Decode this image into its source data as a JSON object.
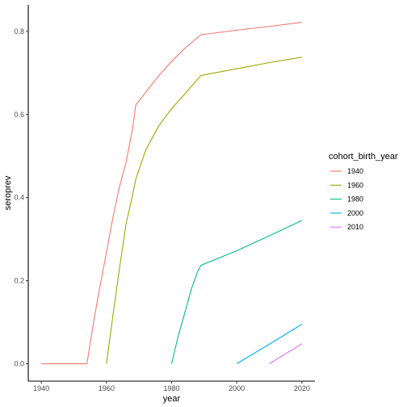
{
  "chart_data": {
    "type": "line",
    "xlabel": "year",
    "ylabel": "seroprev",
    "xlim": [
      1936,
      2024
    ],
    "ylim": [
      -0.042,
      0.864
    ],
    "x_ticks": [
      1940,
      1960,
      1980,
      2000,
      2020
    ],
    "y_ticks": [
      0.0,
      0.2,
      0.4,
      0.6,
      0.8
    ],
    "x_tick_labels": [
      "1940",
      "1960",
      "1980",
      "2000",
      "2020"
    ],
    "y_tick_labels": [
      "0.0",
      "0.2",
      "0.4",
      "0.6",
      "0.8"
    ],
    "grid": false,
    "legend": {
      "title": "cohort_birth_year",
      "position": "right"
    },
    "series": [
      {
        "name": "1940",
        "color": "#F8766D",
        "x": [
          1940,
          1954,
          1956,
          1958,
          1960,
          1962,
          1964,
          1966,
          1968,
          1969,
          1972,
          1976,
          1980,
          1984,
          1989,
          2000,
          2010,
          2020
        ],
        "y": [
          0.0,
          0.0,
          0.098,
          0.186,
          0.268,
          0.353,
          0.426,
          0.484,
          0.565,
          0.623,
          0.653,
          0.693,
          0.728,
          0.759,
          0.792,
          0.803,
          0.812,
          0.822
        ]
      },
      {
        "name": "1960",
        "color": "#A3A500",
        "x": [
          1960,
          1962,
          1964,
          1966,
          1968,
          1969,
          1972,
          1976,
          1980,
          1984,
          1989,
          2000,
          2010,
          2020
        ],
        "y": [
          0.0,
          0.117,
          0.229,
          0.336,
          0.405,
          0.444,
          0.513,
          0.572,
          0.614,
          0.649,
          0.694,
          0.71,
          0.725,
          0.738
        ]
      },
      {
        "name": "1980",
        "color": "#00BF7D",
        "x": [
          1980,
          1982,
          1984,
          1986,
          1988,
          1989,
          2000,
          2010,
          2020
        ],
        "y": [
          0.0,
          0.066,
          0.121,
          0.178,
          0.222,
          0.237,
          0.272,
          0.308,
          0.345
        ]
      },
      {
        "name": "2000",
        "color": "#00B0F6",
        "x": [
          2000,
          2010,
          2020
        ],
        "y": [
          0.0,
          0.047,
          0.095
        ]
      },
      {
        "name": "2010",
        "color": "#E76BF3",
        "x": [
          2010,
          2020
        ],
        "y": [
          0.0,
          0.048
        ]
      }
    ]
  }
}
